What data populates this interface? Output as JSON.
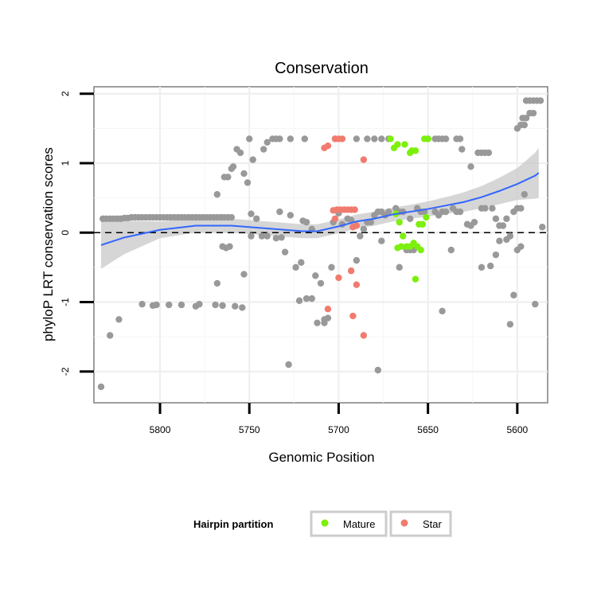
{
  "chart_data": {
    "type": "scatter",
    "title": "Conservation",
    "xlabel": "Genomic Position",
    "ylabel": "phyloP LRT conservation scores",
    "x_reversed": true,
    "xlim": [
      5583,
      5837
    ],
    "ylim": [
      -2.45,
      2.1
    ],
    "x_ticks": [
      5800,
      5750,
      5700,
      5650,
      5600
    ],
    "y_ticks": [
      2,
      1,
      0,
      -1,
      -2
    ],
    "grid": true,
    "reference_line": {
      "y": 0,
      "style": "dashed"
    },
    "legend": {
      "title": "Hairpin partition",
      "position": "bottom",
      "entries": [
        {
          "label": "Mature",
          "color": "#7cf00c"
        },
        {
          "label": "Star",
          "color": "#f07b6e"
        }
      ]
    },
    "colors": {
      "other": "#999999",
      "Mature": "#7cf00c",
      "Star": "#f07b6e",
      "smooth": "#3366ff",
      "ribbon": "#c8c8c8"
    },
    "series": [
      {
        "name": "Other",
        "points": [
          [
            5833,
            -2.22
          ],
          [
            5828,
            -1.48
          ],
          [
            5823,
            -1.25
          ],
          [
            5810,
            -1.03
          ],
          [
            5804,
            -1.05
          ],
          [
            5802,
            -1.04
          ],
          [
            5795,
            -1.04
          ],
          [
            5788,
            -1.04
          ],
          [
            5780,
            -1.06
          ],
          [
            5778,
            -1.03
          ],
          [
            5769,
            -1.04
          ],
          [
            5765,
            -1.05
          ],
          [
            5758,
            -1.06
          ],
          [
            5754,
            -1.08
          ],
          [
            5832,
            0.2
          ],
          [
            5830,
            0.2
          ],
          [
            5828,
            0.2
          ],
          [
            5826,
            0.2
          ],
          [
            5824,
            0.2
          ],
          [
            5822,
            0.2
          ],
          [
            5820,
            0.21
          ],
          [
            5818,
            0.21
          ],
          [
            5816,
            0.22
          ],
          [
            5814,
            0.22
          ],
          [
            5812,
            0.22
          ],
          [
            5810,
            0.22
          ],
          [
            5808,
            0.22
          ],
          [
            5806,
            0.22
          ],
          [
            5804,
            0.22
          ],
          [
            5802,
            0.22
          ],
          [
            5800,
            0.22
          ],
          [
            5798,
            0.22
          ],
          [
            5796,
            0.22
          ],
          [
            5794,
            0.22
          ],
          [
            5792,
            0.22
          ],
          [
            5790,
            0.22
          ],
          [
            5788,
            0.22
          ],
          [
            5786,
            0.22
          ],
          [
            5784,
            0.22
          ],
          [
            5782,
            0.22
          ],
          [
            5780,
            0.22
          ],
          [
            5778,
            0.22
          ],
          [
            5776,
            0.22
          ],
          [
            5774,
            0.22
          ],
          [
            5772,
            0.22
          ],
          [
            5770,
            0.22
          ],
          [
            5768,
            0.22
          ],
          [
            5766,
            0.22
          ],
          [
            5764,
            0.22
          ],
          [
            5762,
            0.22
          ],
          [
            5760,
            0.22
          ],
          [
            5768,
            0.55
          ],
          [
            5766,
            0.22
          ],
          [
            5764,
            0.8
          ],
          [
            5762,
            0.8
          ],
          [
            5760,
            0.92
          ],
          [
            5759,
            0.95
          ],
          [
            5757,
            1.2
          ],
          [
            5755,
            1.15
          ],
          [
            5753,
            0.85
          ],
          [
            5751,
            0.72
          ],
          [
            5750,
            1.35
          ],
          [
            5748,
            1.05
          ],
          [
            5742,
            1.2
          ],
          [
            5740,
            1.3
          ],
          [
            5737,
            1.35
          ],
          [
            5735,
            1.35
          ],
          [
            5733,
            1.35
          ],
          [
            5727,
            1.35
          ],
          [
            5719,
            1.35
          ],
          [
            5702,
            1.35
          ],
          [
            5690,
            1.35
          ],
          [
            5684,
            1.35
          ],
          [
            5680,
            1.35
          ],
          [
            5676,
            1.35
          ],
          [
            5672,
            1.35
          ],
          [
            5650,
            1.35
          ],
          [
            5646,
            1.35
          ],
          [
            5644,
            1.35
          ],
          [
            5642,
            1.35
          ],
          [
            5640,
            1.35
          ],
          [
            5634,
            1.35
          ],
          [
            5632,
            1.35
          ],
          [
            5631,
            1.2
          ],
          [
            5626,
            0.95
          ],
          [
            5622,
            1.15
          ],
          [
            5620,
            1.15
          ],
          [
            5618,
            1.15
          ],
          [
            5616,
            1.15
          ],
          [
            5600,
            1.5
          ],
          [
            5598,
            1.55
          ],
          [
            5596,
            1.55
          ],
          [
            5593,
            1.72
          ],
          [
            5591,
            1.72
          ],
          [
            5597,
            1.65
          ],
          [
            5595,
            1.65
          ],
          [
            5595,
            1.9
          ],
          [
            5593,
            1.9
          ],
          [
            5591,
            1.9
          ],
          [
            5589,
            1.9
          ],
          [
            5587,
            1.9
          ],
          [
            5768,
            -0.73
          ],
          [
            5765,
            -0.2
          ],
          [
            5763,
            -0.22
          ],
          [
            5761,
            -0.2
          ],
          [
            5753,
            -0.6
          ],
          [
            5749,
            -0.05
          ],
          [
            5749,
            0.27
          ],
          [
            5746,
            0.2
          ],
          [
            5743,
            -0.05
          ],
          [
            5740,
            -0.05
          ],
          [
            5735,
            -0.08
          ],
          [
            5733,
            0.3
          ],
          [
            5732,
            -0.07
          ],
          [
            5730,
            -0.28
          ],
          [
            5727,
            0.25
          ],
          [
            5724,
            -0.5
          ],
          [
            5721,
            -0.43
          ],
          [
            5720,
            0.17
          ],
          [
            5718,
            0.15
          ],
          [
            5715,
            0.05
          ],
          [
            5715,
            -0.95
          ],
          [
            5713,
            -0.62
          ],
          [
            5710,
            -0.73
          ],
          [
            5708,
            -1.3
          ],
          [
            5706,
            -1.23
          ],
          [
            5704,
            -0.5
          ],
          [
            5703,
            0.15
          ],
          [
            5700,
            0.28
          ],
          [
            5698,
            0.12
          ],
          [
            5695,
            0.2
          ],
          [
            5693,
            0.18
          ],
          [
            5690,
            -0.4
          ],
          [
            5688,
            -0.05
          ],
          [
            5686,
            0.05
          ],
          [
            5684,
            0.15
          ],
          [
            5682,
            0.15
          ],
          [
            5680,
            0.25
          ],
          [
            5678,
            0.3
          ],
          [
            5676,
            0.3
          ],
          [
            5674,
            0.25
          ],
          [
            5672,
            0.3
          ],
          [
            5668,
            0.35
          ],
          [
            5666,
            0.3
          ],
          [
            5664,
            0.3
          ],
          [
            5662,
            -0.25
          ],
          [
            5660,
            0.2
          ],
          [
            5656,
            0.35
          ],
          [
            5654,
            0.3
          ],
          [
            5652,
            0.3
          ],
          [
            5646,
            0.3
          ],
          [
            5644,
            0.25
          ],
          [
            5642,
            0.3
          ],
          [
            5640,
            0.3
          ],
          [
            5636,
            0.35
          ],
          [
            5634,
            0.3
          ],
          [
            5632,
            0.3
          ],
          [
            5628,
            0.12
          ],
          [
            5626,
            0.1
          ],
          [
            5624,
            0.15
          ],
          [
            5620,
            0.35
          ],
          [
            5618,
            0.35
          ],
          [
            5614,
            0.35
          ],
          [
            5612,
            0.2
          ],
          [
            5610,
            0.1
          ],
          [
            5608,
            0.1
          ],
          [
            5606,
            0.2
          ],
          [
            5604,
            -0.05
          ],
          [
            5602,
            0.3
          ],
          [
            5600,
            0.35
          ],
          [
            5598,
            0.35
          ],
          [
            5596,
            0.55
          ],
          [
            5586,
            0.08
          ],
          [
            5728,
            -1.9
          ],
          [
            5722,
            -0.98
          ],
          [
            5718,
            -0.95
          ],
          [
            5712,
            -1.3
          ],
          [
            5708,
            -1.25
          ],
          [
            5678,
            -1.98
          ],
          [
            5642,
            -1.13
          ],
          [
            5620,
            -0.5
          ],
          [
            5615,
            -0.48
          ],
          [
            5612,
            -0.32
          ],
          [
            5610,
            -0.12
          ],
          [
            5606,
            -0.1
          ],
          [
            5604,
            -1.32
          ],
          [
            5602,
            -0.9
          ],
          [
            5600,
            -0.25
          ],
          [
            5598,
            -0.2
          ],
          [
            5590,
            -1.03
          ],
          [
            5637,
            -0.25
          ],
          [
            5660,
            -0.25
          ],
          [
            5658,
            -0.25
          ],
          [
            5666,
            -0.5
          ],
          [
            5676,
            -0.12
          ]
        ]
      },
      {
        "name": "Mature",
        "points": [
          [
            5671,
            1.35
          ],
          [
            5669,
            1.22
          ],
          [
            5667,
            1.27
          ],
          [
            5663,
            1.27
          ],
          [
            5660,
            1.15
          ],
          [
            5659,
            1.18
          ],
          [
            5657,
            1.18
          ],
          [
            5652,
            1.35
          ],
          [
            5650,
            1.35
          ],
          [
            5668,
            0.27
          ],
          [
            5666,
            0.15
          ],
          [
            5664,
            -0.05
          ],
          [
            5662,
            -0.2
          ],
          [
            5660,
            -0.2
          ],
          [
            5658,
            -0.15
          ],
          [
            5656,
            -0.2
          ],
          [
            5654,
            -0.25
          ],
          [
            5655,
            0.12
          ],
          [
            5653,
            0.12
          ],
          [
            5651,
            0.22
          ],
          [
            5667,
            -0.22
          ],
          [
            5665,
            -0.2
          ],
          [
            5657,
            -0.67
          ]
        ]
      },
      {
        "name": "Star",
        "points": [
          [
            5708,
            1.22
          ],
          [
            5706,
            1.25
          ],
          [
            5702,
            1.35
          ],
          [
            5700,
            1.35
          ],
          [
            5698,
            1.35
          ],
          [
            5686,
            1.05
          ],
          [
            5703,
            0.32
          ],
          [
            5701,
            0.33
          ],
          [
            5699,
            0.33
          ],
          [
            5697,
            0.33
          ],
          [
            5695,
            0.33
          ],
          [
            5693,
            0.33
          ],
          [
            5691,
            0.33
          ],
          [
            5702,
            0.2
          ],
          [
            5692,
            0.08
          ],
          [
            5690,
            0.1
          ],
          [
            5700,
            -0.65
          ],
          [
            5693,
            -0.55
          ],
          [
            5690,
            -0.75
          ],
          [
            5706,
            -1.1
          ],
          [
            5692,
            -1.2
          ],
          [
            5686,
            -1.48
          ]
        ]
      }
    ],
    "smooth": {
      "x": [
        5833,
        5820,
        5800,
        5780,
        5760,
        5740,
        5720,
        5712,
        5700,
        5690,
        5680,
        5670,
        5660,
        5650,
        5640,
        5630,
        5620,
        5610,
        5600,
        5590,
        5588
      ],
      "y": [
        -0.18,
        -0.07,
        0.04,
        0.1,
        0.1,
        0.06,
        0.02,
        0.02,
        0.09,
        0.16,
        0.2,
        0.26,
        0.3,
        0.34,
        0.39,
        0.44,
        0.51,
        0.6,
        0.7,
        0.82,
        0.86
      ],
      "se": [
        0.34,
        0.24,
        0.12,
        0.1,
        0.1,
        0.1,
        0.1,
        0.1,
        0.1,
        0.1,
        0.1,
        0.1,
        0.1,
        0.11,
        0.12,
        0.14,
        0.16,
        0.19,
        0.23,
        0.33,
        0.36
      ]
    }
  }
}
